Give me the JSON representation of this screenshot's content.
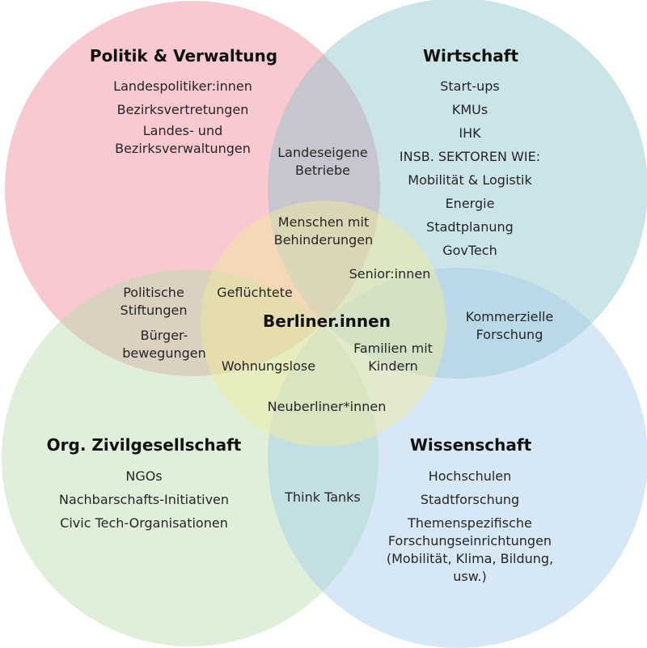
{
  "colors": {
    "politik": "#f0889a",
    "wirtschaft": "#8cc3c9",
    "zivil": "#b9dcae",
    "wissen": "#a3cdea",
    "center": "#f3ec9a"
  },
  "sets": {
    "politik": {
      "title": "Politik & Verwaltung",
      "items": [
        "Landespolitiker:innen",
        "Bezirksvertretungen",
        "Landes- und\nBezirksverwaltungen"
      ]
    },
    "wirtschaft": {
      "title": "Wirtschaft",
      "items": [
        "Start-ups",
        "KMUs",
        "IHK",
        "INSB. SEKTOREN WIE:",
        "Mobilität & Logistik",
        "Energie",
        "Stadtplanung",
        "GovTech"
      ]
    },
    "zivil": {
      "title": "Org. Zivilgesellschaft",
      "items": [
        "NGOs",
        "Nachbarschafts-Initiativen",
        "Civic Tech-Organisationen"
      ]
    },
    "wissen": {
      "title": "Wissenschaft",
      "items": [
        "Hochschulen",
        "Stadtforschung",
        "Themenspezifische\nForschungseinrichtungen\n(Mobilität, Klima, Bildung, usw.)"
      ]
    }
  },
  "center": {
    "title": "Berliner.innen"
  },
  "overlaps": {
    "landeseigene": "Landeseigene\nBetriebe",
    "menschen": "Menschen mit\nBehinderungen",
    "senior": "Senior:innen",
    "gefluechtete": "Geflüchtete",
    "stiftungen": "Politische\nStiftungen",
    "buerger": "Bürger-\nbewegungen",
    "kommerziell": "Kommerzielle\nForschung",
    "familien": "Familien mit\nKindern",
    "wohnungslose": "Wohnungslose",
    "neuberliner": "Neuberliner*innen",
    "thinktanks": "Think Tanks"
  }
}
